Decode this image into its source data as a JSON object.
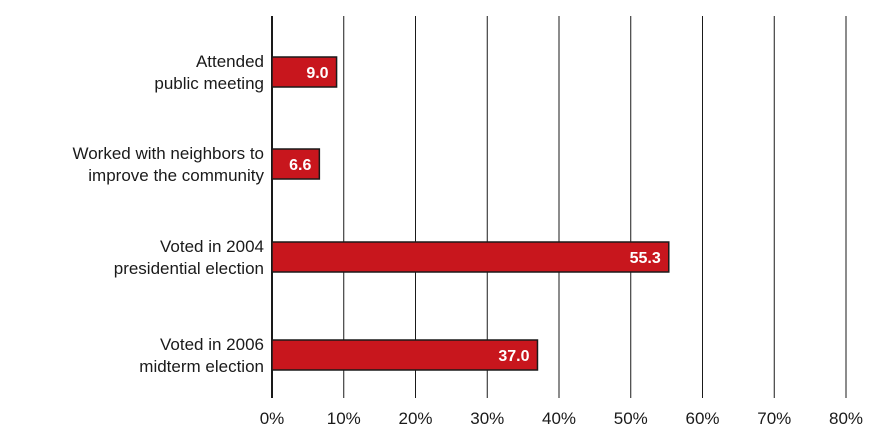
{
  "chart_data": {
    "type": "bar",
    "orientation": "horizontal",
    "categories": [
      [
        "Attended",
        "public meeting"
      ],
      [
        "Worked with neighbors to",
        "improve the community"
      ],
      [
        "Voted in 2004",
        "presidential election"
      ],
      [
        "Voted in 2006",
        "midterm election"
      ]
    ],
    "values": [
      9.0,
      6.6,
      55.3,
      37.0
    ],
    "value_labels": [
      "9.0",
      "6.6",
      "55.3",
      "37.0"
    ],
    "xlim": [
      0,
      80
    ],
    "xticks": [
      "0%",
      "10%",
      "20%",
      "30%",
      "40%",
      "50%",
      "60%",
      "70%",
      "80%"
    ],
    "grid": "vertical",
    "title": "",
    "xlabel": "",
    "ylabel": "",
    "colors": {
      "bar": "#c8161d",
      "bar_edge": "#1a1a1a",
      "grid": "#1a1a1a"
    }
  }
}
